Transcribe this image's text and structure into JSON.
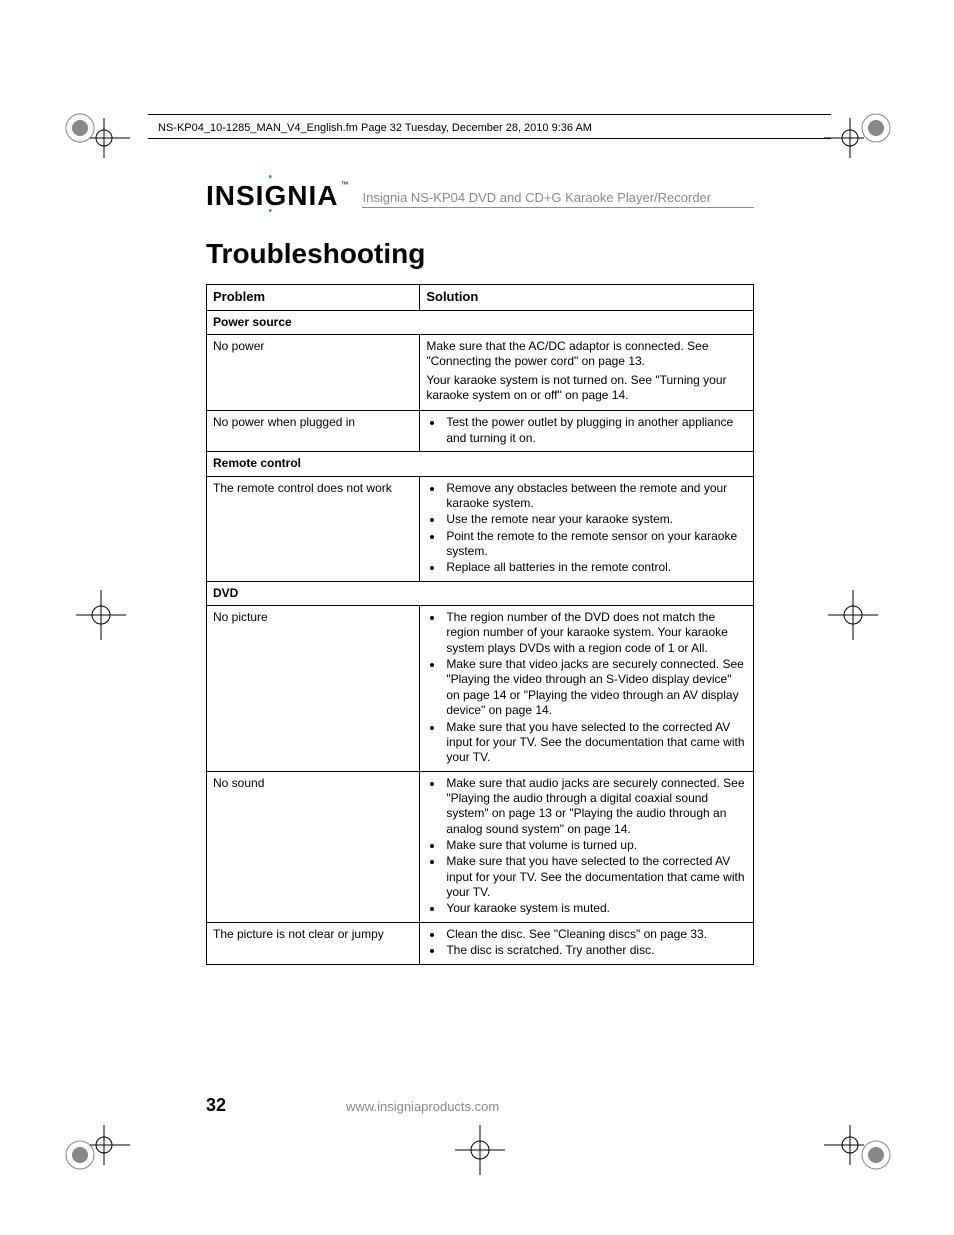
{
  "doc_header": "NS-KP04_10-1285_MAN_V4_English.fm  Page 32  Tuesday, December 28, 2010  9:36 AM",
  "brand": {
    "name_plain": "INSIGNIA",
    "tm": "™",
    "tagline": "Insignia NS-KP04 DVD and CD+G Karaoke Player/Recorder"
  },
  "title": "Troubleshooting",
  "table": {
    "columns": [
      "Problem",
      "Solution"
    ],
    "sections": [
      {
        "name": "Power source",
        "rows": [
          {
            "problem": "No power",
            "solution_paras": [
              "Make sure that the AC/DC adaptor is connected. See \"Connecting the power cord\" on page 13.",
              "Your karaoke system is not turned on. See \"Turning your karaoke system on or off\" on page 14."
            ]
          },
          {
            "problem": "No power when plugged in",
            "solution_bullets": [
              "Test the power outlet by plugging in another appliance and turning it on."
            ]
          }
        ]
      },
      {
        "name": "Remote control",
        "rows": [
          {
            "problem": "The remote control does not work",
            "solution_bullets": [
              "Remove any obstacles between the remote and your karaoke system.",
              "Use the remote near your karaoke system.",
              "Point the remote to the remote sensor on your karaoke system.",
              "Replace all batteries in the remote control."
            ]
          }
        ]
      },
      {
        "name": "DVD",
        "rows": [
          {
            "problem": "No picture",
            "solution_bullets": [
              "The region number of the DVD does not match the region number of your karaoke system. Your karaoke system plays DVDs with a region code of 1 or All.",
              "Make sure that video jacks are securely connected. See \"Playing the video through an S-Video display device\" on page 14 or \"Playing the video through an AV display device\" on page 14.",
              "Make sure that you have selected to the corrected AV input for your TV. See the documentation that came with your TV."
            ]
          },
          {
            "problem": "No sound",
            "solution_bullets": [
              "Make sure that audio jacks are securely connected. See \"Playing the audio through a digital coaxial sound system\" on page 13 or \"Playing the audio through an analog sound system\" on page 14.",
              "Make sure that volume is turned up.",
              "Make sure that you have selected to the corrected AV input for your TV. See the documentation that came with your TV.",
              "Your karaoke system is muted."
            ]
          },
          {
            "problem": "The picture is not clear or jumpy",
            "solution_bullets": [
              "Clean the disc. See \"Cleaning discs\" on page 33.",
              "The disc is scratched. Try another disc."
            ]
          }
        ]
      }
    ]
  },
  "footer": {
    "page_number": "32",
    "url": "www.insigniaproducts.com"
  },
  "colors": {
    "text": "#000000",
    "muted": "#8a8a8a",
    "accent": "#0aa3a3",
    "border": "#000000",
    "bg": "#ffffff"
  }
}
